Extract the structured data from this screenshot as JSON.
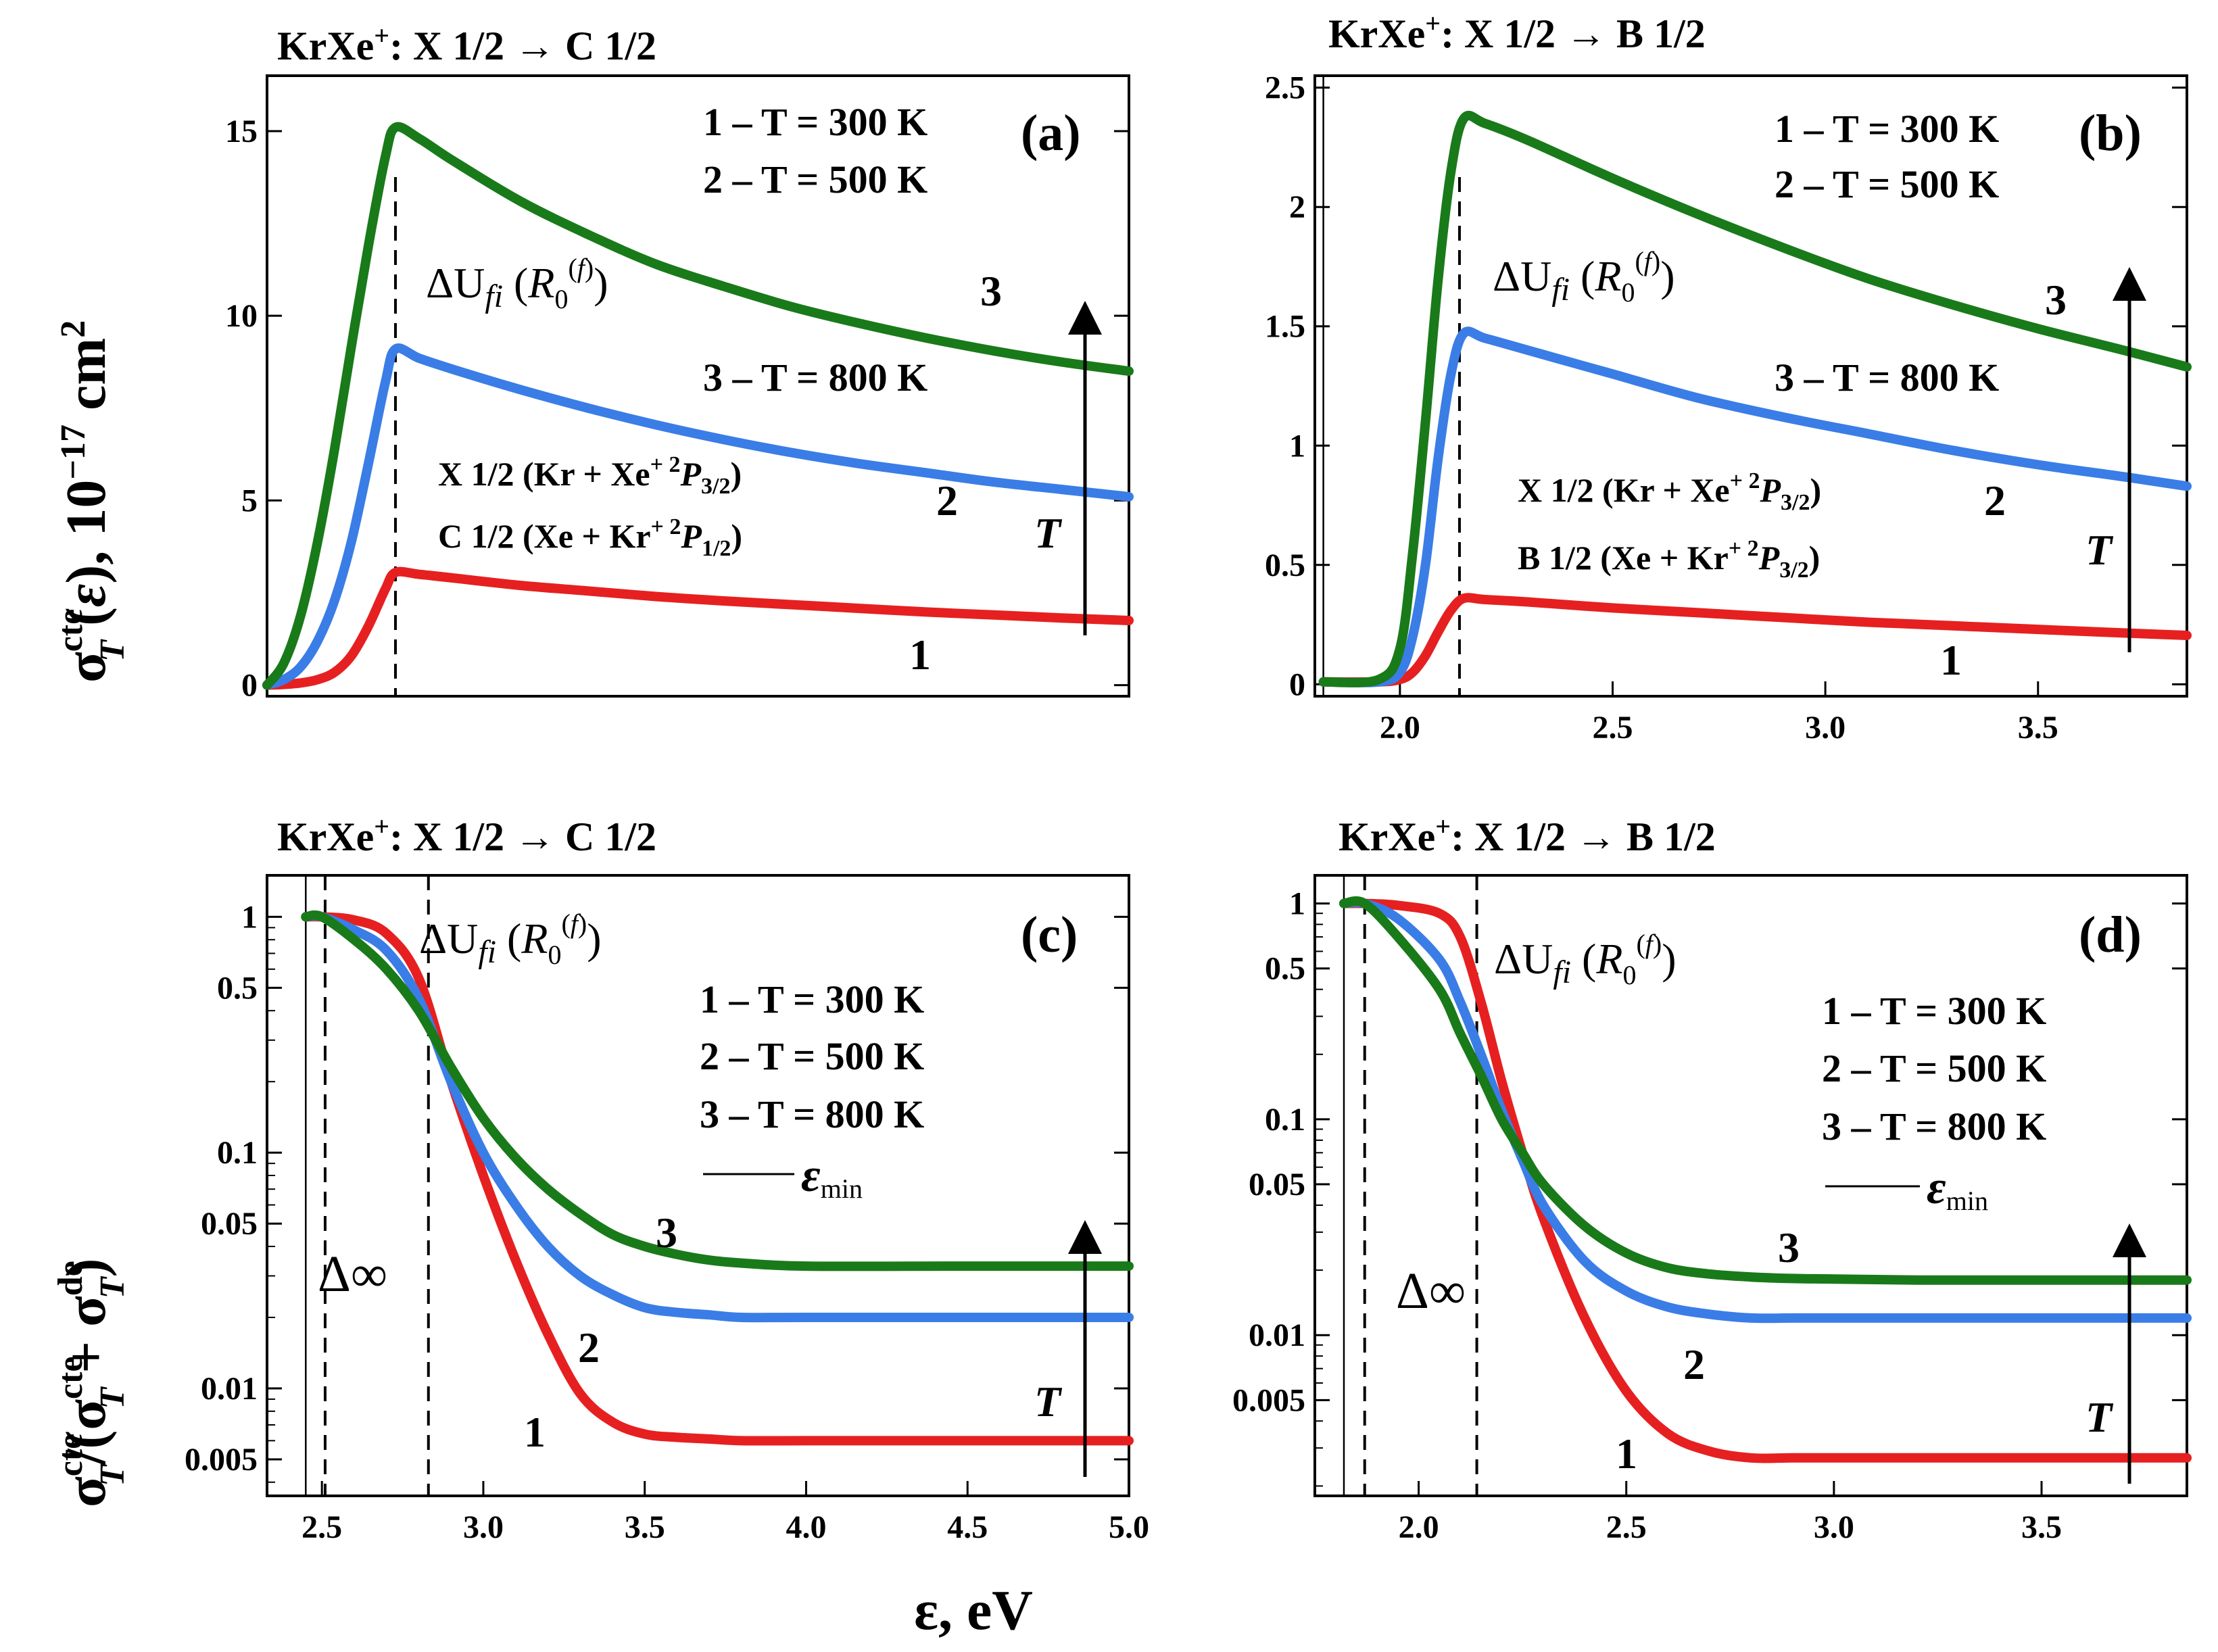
{
  "figure": {
    "x_axis_label": "ε, eV",
    "y_axis_label_top": "σTcte (ε), 10−17 cm2",
    "y_axis_label_bottom": "σTcte/(σTcte + σTde)"
  },
  "colors": {
    "series1": "#e62020",
    "series2": "#3a7de6",
    "series3": "#197a19",
    "axis": "#000000"
  },
  "chart_data": [
    {
      "id": "a",
      "type": "line",
      "title": "KrXe+: X 1/2 → C 1/2",
      "panel_label": "(a)",
      "xlim": [
        2.45,
        5.0
      ],
      "ylim": [
        -0.3,
        16.5
      ],
      "yscale": "linear",
      "xticks": [],
      "yticks": [
        0,
        5,
        10,
        15
      ],
      "x": [
        2.45,
        2.5,
        2.55,
        2.6,
        2.65,
        2.7,
        2.75,
        2.8,
        2.83,
        2.9,
        3.0,
        3.2,
        3.4,
        3.6,
        3.8,
        4.0,
        4.2,
        4.4,
        4.6,
        4.8,
        5.0
      ],
      "series": [
        {
          "name": "1 – T = 300 K",
          "label": "1",
          "values": [
            0,
            0.02,
            0.06,
            0.15,
            0.35,
            0.8,
            1.6,
            2.6,
            3.05,
            3.0,
            2.9,
            2.7,
            2.55,
            2.4,
            2.28,
            2.18,
            2.08,
            1.98,
            1.9,
            1.82,
            1.75
          ]
        },
        {
          "name": "2 – T = 500 K",
          "label": "2",
          "values": [
            0,
            0.15,
            0.5,
            1.2,
            2.3,
            3.9,
            6.0,
            8.2,
            9.1,
            8.85,
            8.55,
            8.0,
            7.5,
            7.05,
            6.65,
            6.3,
            6.0,
            5.75,
            5.5,
            5.3,
            5.1
          ]
        },
        {
          "name": "3 – T = 800 K",
          "label": "3",
          "values": [
            0,
            0.6,
            1.9,
            3.9,
            6.4,
            9.2,
            11.9,
            14.3,
            15.1,
            14.8,
            14.2,
            13.1,
            12.2,
            11.4,
            10.8,
            10.25,
            9.8,
            9.4,
            9.05,
            8.75,
            8.5
          ]
        }
      ],
      "vline_solid": 2.45,
      "vlines_dashed": [
        2.83
      ],
      "annotations": {
        "delta_u": "ΔUfi (R0(f))",
        "config_x": "X 1/2 (Kr + Xe+ 2P3/2)",
        "config_y": "C 1/2 (Xe + Kr+ 2P1/2)",
        "t_arrow": "T"
      }
    },
    {
      "id": "b",
      "type": "line",
      "title": "KrXe+: X 1/2 → B 1/2",
      "panel_label": "(b)",
      "xlim": [
        1.8,
        3.85
      ],
      "ylim": [
        -0.05,
        2.55
      ],
      "yscale": "linear",
      "xticks": [
        2.0,
        2.5,
        3.0,
        3.5
      ],
      "yticks": [
        0,
        0.5,
        1,
        1.5,
        2,
        2.5
      ],
      "x": [
        1.82,
        1.95,
        2.0,
        2.03,
        2.06,
        2.09,
        2.12,
        2.15,
        2.2,
        2.3,
        2.5,
        2.7,
        2.9,
        3.1,
        3.3,
        3.5,
        3.7,
        3.85
      ],
      "series": [
        {
          "name": "1 – T = 300 K",
          "label": "1",
          "values": [
            0.01,
            0.01,
            0.02,
            0.05,
            0.12,
            0.22,
            0.31,
            0.36,
            0.355,
            0.345,
            0.32,
            0.3,
            0.28,
            0.26,
            0.245,
            0.23,
            0.215,
            0.205
          ]
        },
        {
          "name": "2 – T = 500 K",
          "label": "2",
          "values": [
            0.01,
            0.01,
            0.05,
            0.2,
            0.5,
            0.95,
            1.3,
            1.47,
            1.45,
            1.4,
            1.3,
            1.2,
            1.12,
            1.05,
            0.98,
            0.92,
            0.87,
            0.83
          ]
        },
        {
          "name": "3 – T = 800 K",
          "label": "3",
          "values": [
            0.01,
            0.02,
            0.15,
            0.55,
            1.1,
            1.7,
            2.15,
            2.37,
            2.35,
            2.28,
            2.12,
            1.97,
            1.83,
            1.7,
            1.59,
            1.49,
            1.4,
            1.33
          ]
        }
      ],
      "vline_solid": 1.82,
      "vlines_dashed": [
        2.14
      ],
      "annotations": {
        "delta_u": "ΔUfi (R0(f))",
        "config_x": "X 1/2 (Kr + Xe+ 2P3/2)",
        "config_y": "B 1/2 (Xe + Kr+ 2P3/2)",
        "t_arrow": "T"
      }
    },
    {
      "id": "c",
      "type": "line",
      "title": "KrXe+: X 1/2 → C 1/2",
      "panel_label": "(c)",
      "xlim": [
        2.33,
        5.0
      ],
      "ylim": [
        0.0035,
        1.5
      ],
      "yscale": "log",
      "xticks": [
        2.5,
        3.0,
        3.5,
        4.0,
        4.5,
        5.0
      ],
      "yticks": [
        0.005,
        0.01,
        0.05,
        0.1,
        0.5,
        1
      ],
      "ytick_labels": [
        "0.005",
        "0.01",
        "0.05",
        "0.1",
        "0.5",
        "1"
      ],
      "x": [
        2.45,
        2.5,
        2.6,
        2.7,
        2.8,
        2.9,
        3.0,
        3.1,
        3.2,
        3.3,
        3.4,
        3.5,
        3.6,
        3.7,
        3.8,
        4.0,
        4.5,
        5.0
      ],
      "series": [
        {
          "name": "1 – T = 300 K",
          "label": "1",
          "values": [
            1,
            1,
            0.97,
            0.85,
            0.55,
            0.2,
            0.08,
            0.035,
            0.017,
            0.0095,
            0.0072,
            0.0064,
            0.0062,
            0.0061,
            0.006,
            0.006,
            0.006,
            0.006
          ]
        },
        {
          "name": "2 – T = 500 K",
          "label": "2",
          "values": [
            1,
            1,
            0.88,
            0.72,
            0.45,
            0.2,
            0.1,
            0.06,
            0.04,
            0.03,
            0.025,
            0.022,
            0.021,
            0.0205,
            0.02,
            0.02,
            0.02,
            0.02
          ]
        },
        {
          "name": "3 – T = 800 K",
          "label": "3",
          "values": [
            1,
            1,
            0.8,
            0.6,
            0.4,
            0.23,
            0.14,
            0.095,
            0.07,
            0.055,
            0.045,
            0.04,
            0.037,
            0.035,
            0.034,
            0.033,
            0.033,
            0.033
          ]
        }
      ],
      "vline_solid": 2.45,
      "vlines_dashed": [
        2.51,
        2.83
      ],
      "annotations": {
        "delta_u": "ΔUfi (R0(f))",
        "delta_inf": "Δ∞",
        "legend_min": "εmin",
        "t_arrow": "T"
      }
    },
    {
      "id": "d",
      "type": "line",
      "title": "KrXe+: X 1/2 → B 1/2",
      "panel_label": "(d)",
      "xlim": [
        1.75,
        3.85
      ],
      "ylim": [
        0.0018,
        1.35
      ],
      "yscale": "log",
      "xticks": [
        2.0,
        2.5,
        3.0,
        3.5
      ],
      "yticks": [
        0.005,
        0.01,
        0.05,
        0.1,
        0.5,
        1
      ],
      "ytick_labels": [
        "0.005",
        "0.01",
        "0.05",
        "0.1",
        "0.5",
        "1"
      ],
      "x": [
        1.82,
        1.87,
        1.95,
        2.05,
        2.1,
        2.15,
        2.2,
        2.25,
        2.3,
        2.4,
        2.5,
        2.6,
        2.7,
        2.8,
        2.9,
        3.0,
        3.2,
        3.5,
        3.85
      ],
      "series": [
        {
          "name": "1 – T = 300 K",
          "label": "1",
          "values": [
            1,
            1,
            0.98,
            0.9,
            0.7,
            0.35,
            0.15,
            0.07,
            0.035,
            0.012,
            0.0055,
            0.0035,
            0.0029,
            0.0027,
            0.0027,
            0.0027,
            0.0027,
            0.0027,
            0.0027
          ]
        },
        {
          "name": "2 – T = 500 K",
          "label": "2",
          "values": [
            1,
            1,
            0.85,
            0.55,
            0.35,
            0.2,
            0.11,
            0.065,
            0.04,
            0.022,
            0.016,
            0.0135,
            0.0125,
            0.012,
            0.012,
            0.012,
            0.012,
            0.012,
            0.012
          ]
        },
        {
          "name": "3 – T = 800 K",
          "label": "3",
          "values": [
            1,
            1,
            0.7,
            0.4,
            0.25,
            0.16,
            0.1,
            0.07,
            0.05,
            0.032,
            0.024,
            0.0205,
            0.0192,
            0.0186,
            0.0183,
            0.0182,
            0.018,
            0.018,
            0.018
          ]
        }
      ],
      "vline_solid": 1.82,
      "vlines_dashed": [
        1.87,
        2.14
      ],
      "annotations": {
        "delta_u": "ΔUfi (R0(f))",
        "delta_inf": "Δ∞",
        "legend_min": "εmin",
        "t_arrow": "T"
      }
    }
  ]
}
